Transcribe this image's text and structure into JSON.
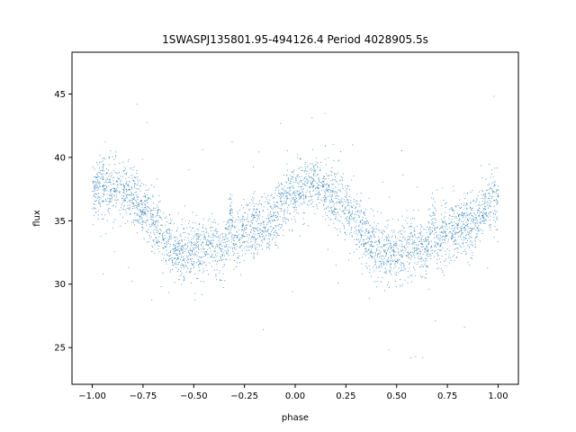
{
  "chart_data": {
    "type": "scatter",
    "title": "1SWASPJ135801.95-494126.4 Period 4028905.5s",
    "xlabel": "phase",
    "ylabel": "flux",
    "xlim": [
      -1.1,
      1.1
    ],
    "ylim": [
      22.1,
      48.3
    ],
    "x_ticks": [
      -1.0,
      -0.75,
      -0.5,
      -0.25,
      0.0,
      0.25,
      0.5,
      0.75,
      1.0
    ],
    "x_tick_labels": [
      "−1.00",
      "−0.75",
      "−0.50",
      "−0.25",
      "0.00",
      "0.25",
      "0.50",
      "0.75",
      "1.00"
    ],
    "y_ticks": [
      25,
      30,
      35,
      40,
      45
    ],
    "y_tick_labels": [
      "25",
      "30",
      "35",
      "40",
      "45"
    ],
    "grid": false,
    "legend": "none",
    "marker_color": "#1f77b4",
    "series": [
      {
        "x": [
          -1.0,
          -0.95,
          -0.9,
          -0.85,
          -0.8,
          -0.75,
          -0.7,
          -0.65,
          -0.6,
          -0.55,
          -0.5,
          -0.45,
          -0.4,
          -0.35,
          -0.32,
          -0.3,
          -0.25,
          -0.2,
          -0.15,
          -0.1,
          -0.05,
          0.0,
          0.05,
          0.1,
          0.15,
          0.2,
          0.25,
          0.3,
          0.35,
          0.4,
          0.45,
          0.5,
          0.55,
          0.6,
          0.65,
          0.68,
          0.7,
          0.75,
          0.8,
          0.85,
          0.9,
          0.95,
          1.0
        ],
        "y": [
          37.3,
          37.8,
          37.9,
          37.3,
          36.8,
          36.0,
          35.0,
          33.8,
          32.8,
          32.5,
          32.6,
          33.0,
          33.0,
          32.5,
          35.5,
          32.8,
          34.3,
          34.5,
          34.3,
          35.3,
          36.8,
          37.3,
          37.8,
          37.9,
          37.3,
          36.8,
          36.0,
          35.0,
          33.8,
          32.8,
          32.5,
          32.6,
          33.0,
          33.0,
          32.5,
          35.5,
          32.8,
          34.3,
          34.5,
          34.3,
          35.3,
          36.3,
          36.8
        ]
      }
    ]
  }
}
